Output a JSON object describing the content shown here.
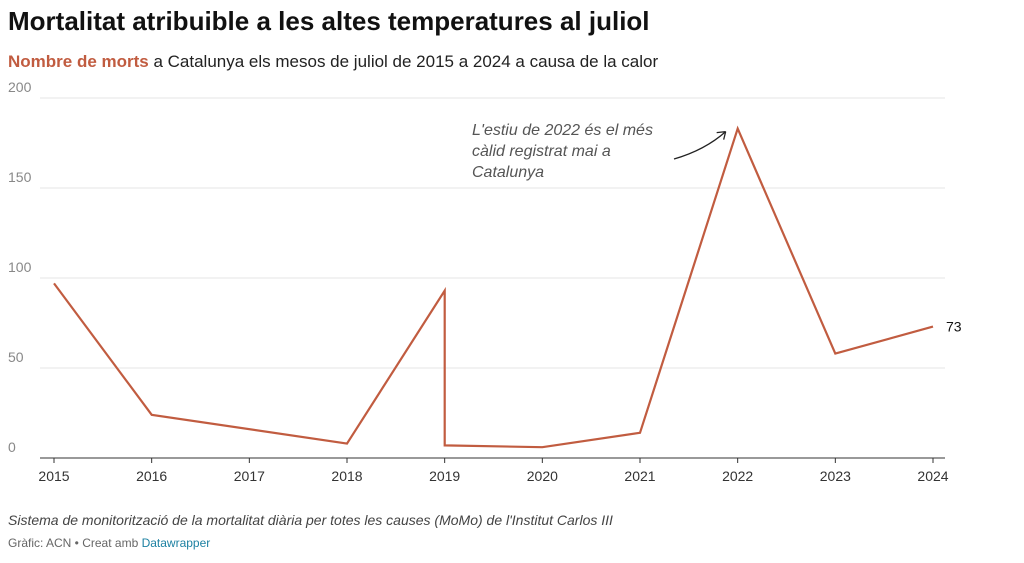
{
  "header": {
    "title": "Mortalitat atribuible a les altes temperatures al juliol",
    "subtitle_highlight": "Nombre de morts",
    "subtitle_rest": " a Catalunya els mesos de juliol de 2015 a 2024 a causa de la calor"
  },
  "footer": {
    "source": "Sistema de monitorització de la mortalitat diària per totes les causes (MoMo) de l'Institut Carlos III",
    "credit_prefix": "Gràfic: ACN • Creat amb ",
    "credit_link": "Datawrapper"
  },
  "colors": {
    "line": "#c15c40",
    "grid": "#e6e6e6",
    "highlight": "#c15c40",
    "link": "#1d81a2"
  },
  "chart_data": {
    "type": "line",
    "title": "Mortalitat atribuible a les altes temperatures al juliol",
    "xlabel": "",
    "ylabel": "",
    "xlim": [
      2015,
      2024
    ],
    "ylim": [
      0,
      200
    ],
    "x_ticks": [
      "2015",
      "2016",
      "2017",
      "2018",
      "2019",
      "2020",
      "2021",
      "2022",
      "2023",
      "2024"
    ],
    "y_ticks": [
      "0",
      "50",
      "100",
      "150",
      "200"
    ],
    "grid": true,
    "series": [
      {
        "name": "Nombre de morts",
        "points": [
          {
            "x": 2015,
            "y": 97
          },
          {
            "x": 2016,
            "y": 24
          },
          {
            "x": 2018,
            "y": 8
          },
          {
            "x": 2019,
            "y": 93
          },
          {
            "x": 2019,
            "y": 7
          },
          {
            "x": 2020,
            "y": 6
          },
          {
            "x": 2021,
            "y": 14
          },
          {
            "x": 2022,
            "y": 183
          },
          {
            "x": 2023,
            "y": 58
          },
          {
            "x": 2024,
            "y": 73
          }
        ]
      }
    ],
    "end_label": "73",
    "annotation": {
      "lines": [
        "L'estiu de 2022 és el més",
        "càlid registrat mai a",
        "Catalunya"
      ],
      "target": {
        "x": 2022,
        "y": 183
      }
    }
  }
}
